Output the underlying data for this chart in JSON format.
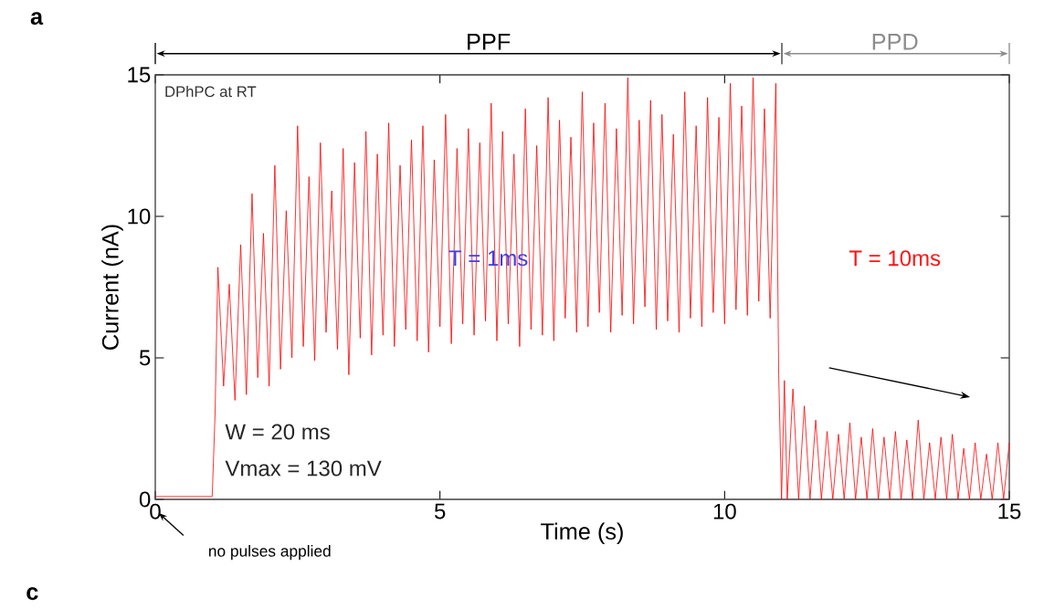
{
  "chart_data": {
    "type": "line",
    "xlabel": "Time (s)",
    "ylabel": "Current (nA)",
    "xlim": [
      0,
      15
    ],
    "ylim": [
      0,
      15
    ],
    "xticks": [
      0,
      5,
      10,
      15
    ],
    "yticks": [
      0,
      5,
      10,
      15
    ],
    "grid": false,
    "series": [
      {
        "color": "#ff0000",
        "x": [
          0,
          1.0,
          1.05,
          1.1,
          1.2,
          1.3,
          1.4,
          1.5,
          1.6,
          1.7,
          1.8,
          1.9,
          2.0,
          2.1,
          2.2,
          2.3,
          2.4,
          2.5,
          2.6,
          2.7,
          2.8,
          2.9,
          3.0,
          3.1,
          3.2,
          3.3,
          3.4,
          3.5,
          3.6,
          3.7,
          3.8,
          3.9,
          4.0,
          4.1,
          4.2,
          4.3,
          4.4,
          4.5,
          4.6,
          4.7,
          4.8,
          4.9,
          5.0,
          5.1,
          5.2,
          5.3,
          5.4,
          5.5,
          5.6,
          5.7,
          5.8,
          5.9,
          6.0,
          6.1,
          6.2,
          6.3,
          6.4,
          6.5,
          6.6,
          6.7,
          6.8,
          6.9,
          7.0,
          7.1,
          7.2,
          7.3,
          7.4,
          7.5,
          7.6,
          7.7,
          7.8,
          7.9,
          8.0,
          8.1,
          8.2,
          8.3,
          8.4,
          8.5,
          8.6,
          8.7,
          8.8,
          8.9,
          9.0,
          9.1,
          9.2,
          9.3,
          9.4,
          9.5,
          9.6,
          9.7,
          9.8,
          9.9,
          10.0,
          10.1,
          10.2,
          10.3,
          10.4,
          10.5,
          10.6,
          10.7,
          10.8,
          10.9,
          10.95,
          11.0,
          11.05,
          11.1,
          11.2,
          11.3,
          11.4,
          11.5,
          11.6,
          11.7,
          11.8,
          11.9,
          12.0,
          12.1,
          12.2,
          12.3,
          12.4,
          12.5,
          12.6,
          12.7,
          12.8,
          12.9,
          13.0,
          13.1,
          13.2,
          13.3,
          13.4,
          13.5,
          13.6,
          13.7,
          13.8,
          13.9,
          14.0,
          14.1,
          14.2,
          14.3,
          14.4,
          14.5,
          14.6,
          14.7,
          14.8,
          14.9,
          15.0
        ],
        "values": [
          0.1,
          0.1,
          3.0,
          8.2,
          4.0,
          7.6,
          3.5,
          9.0,
          3.7,
          10.8,
          4.3,
          9.4,
          4.0,
          11.8,
          4.6,
          10.2,
          5.0,
          13.2,
          5.4,
          11.4,
          4.9,
          12.6,
          5.9,
          10.9,
          5.3,
          12.4,
          4.4,
          11.9,
          5.7,
          13.0,
          5.1,
          12.2,
          5.8,
          13.3,
          5.4,
          11.8,
          6.0,
          12.7,
          5.6,
          13.2,
          5.2,
          12.0,
          6.1,
          13.6,
          5.5,
          12.4,
          6.2,
          13.1,
          5.8,
          12.6,
          6.3,
          14.0,
          5.6,
          13.0,
          6.2,
          12.2,
          5.4,
          13.8,
          6.0,
          12.5,
          5.8,
          14.2,
          5.6,
          13.4,
          6.4,
          12.8,
          5.9,
          14.4,
          6.1,
          13.3,
          6.6,
          14.0,
          5.9,
          13.1,
          6.5,
          14.9,
          6.2,
          13.4,
          6.8,
          14.1,
          6.0,
          13.6,
          6.3,
          12.9,
          5.9,
          14.4,
          6.4,
          13.2,
          6.1,
          14.2,
          6.6,
          13.5,
          6.2,
          14.7,
          6.7,
          13.9,
          6.5,
          14.9,
          7.0,
          13.8,
          6.4,
          14.7,
          4.4,
          0,
          4.2,
          0,
          3.9,
          0,
          3.3,
          0,
          2.8,
          0,
          2.4,
          0,
          2.3,
          0,
          2.7,
          0,
          2.2,
          0,
          2.5,
          0,
          2.2,
          0,
          2.4,
          0,
          2.1,
          0,
          2.8,
          0,
          2.0,
          0,
          2.2,
          0,
          2.3,
          0,
          1.8,
          0,
          2.0,
          0,
          1.6,
          0,
          2.0,
          0,
          2.0
        ]
      }
    ],
    "annotations": [
      "a",
      "PPF",
      "PPD",
      "DPhPC at RT",
      "T = 1ms",
      "T = 10ms",
      "W = 20 ms",
      "Vmax = 130 mV",
      "no pulses applied",
      "c"
    ]
  }
}
